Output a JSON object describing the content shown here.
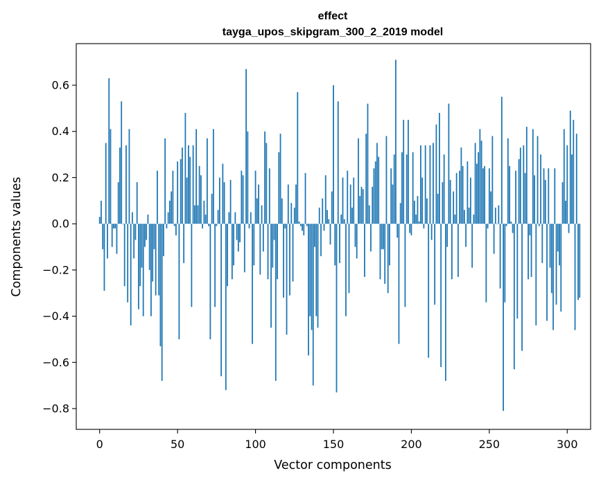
{
  "chart_data": {
    "type": "bar",
    "title_lines": [
      "effect",
      "tayga_upos_skipgram_300_2_2019 model"
    ],
    "xlabel": "Vector components",
    "ylabel": "Components values",
    "xlim": [
      -15,
      315
    ],
    "ylim": [
      -0.89,
      0.78
    ],
    "xticks": [
      0,
      50,
      100,
      150,
      200,
      250,
      300
    ],
    "yticks": [
      -0.8,
      -0.6,
      -0.4,
      -0.2,
      0.0,
      0.2,
      0.4,
      0.6
    ],
    "ytick_labels": [
      "−0.8",
      "−0.6",
      "−0.4",
      "−0.2",
      "0.0",
      "0.2",
      "0.4",
      "0.6"
    ],
    "xtick_labels": [
      "0",
      "50",
      "100",
      "150",
      "200",
      "250",
      "300"
    ],
    "bar_color": "#1f77b4",
    "bar_width": 0.8,
    "values": [
      0.03,
      0.1,
      -0.11,
      -0.29,
      0.35,
      -0.15,
      0.63,
      0.41,
      -0.1,
      -0.02,
      -0.02,
      -0.13,
      0.18,
      0.33,
      0.53,
      0.0,
      -0.27,
      0.34,
      -0.34,
      0.41,
      -0.44,
      0.05,
      -0.15,
      -0.07,
      0.18,
      -0.37,
      -0.27,
      -0.19,
      -0.4,
      -0.1,
      -0.07,
      0.04,
      -0.2,
      -0.4,
      -0.25,
      -0.11,
      -0.31,
      0.23,
      -0.31,
      -0.53,
      -0.68,
      -0.14,
      0.37,
      -0.02,
      0.05,
      0.1,
      0.14,
      0.23,
      -0.01,
      -0.05,
      0.27,
      -0.5,
      0.28,
      0.33,
      -0.17,
      0.48,
      0.2,
      0.34,
      0.29,
      -0.36,
      0.34,
      0.08,
      0.41,
      0.08,
      0.25,
      0.21,
      -0.02,
      0.1,
      0.04,
      0.37,
      -0.01,
      -0.5,
      0.13,
      0.41,
      -0.36,
      -0.01,
      0.06,
      0.2,
      -0.66,
      0.26,
      0.18,
      -0.72,
      -0.27,
      0.05,
      0.19,
      -0.24,
      -0.18,
      0.05,
      -0.07,
      -0.12,
      -0.08,
      0.23,
      0.21,
      -0.21,
      0.67,
      0.4,
      -0.02,
      0.05,
      -0.52,
      -0.18,
      0.23,
      0.11,
      0.17,
      -0.22,
      0.08,
      -0.12,
      0.4,
      0.35,
      -0.24,
      0.24,
      -0.45,
      -0.19,
      -0.07,
      -0.68,
      -0.24,
      0.31,
      0.39,
      0.11,
      -0.32,
      -0.02,
      -0.48,
      0.17,
      -0.31,
      0.09,
      -0.25,
      0.07,
      0.17,
      0.57,
      0.01,
      -0.01,
      -0.03,
      -0.05,
      0.22,
      -0.01,
      -0.57,
      -0.4,
      -0.46,
      -0.7,
      -0.1,
      -0.4,
      -0.45,
      0.07,
      -0.14,
      0.11,
      -0.03,
      0.21,
      0.06,
      0.02,
      -0.09,
      0.14,
      0.6,
      -0.18,
      -0.73,
      0.53,
      -0.17,
      0.04,
      0.2,
      0.02,
      -0.4,
      0.23,
      -0.3,
      0.17,
      0.07,
      0.2,
      -0.1,
      -0.15,
      0.37,
      0.12,
      0.16,
      0.15,
      -0.23,
      0.39,
      0.52,
      0.08,
      -0.12,
      0.16,
      0.24,
      0.27,
      0.35,
      0.29,
      -0.24,
      -0.11,
      -0.11,
      -0.26,
      0.38,
      -0.3,
      -0.18,
      0.24,
      0.17,
      0.3,
      0.71,
      -0.06,
      -0.52,
      0.09,
      0.31,
      0.45,
      -0.36,
      0.3,
      0.45,
      -0.04,
      -0.05,
      0.31,
      0.1,
      0.04,
      0.12,
      0.01,
      0.34,
      0.2,
      -0.02,
      0.34,
      0.11,
      -0.58,
      0.34,
      -0.07,
      0.35,
      -0.35,
      0.43,
      0.13,
      0.48,
      -0.62,
      0.18,
      0.3,
      -0.68,
      -0.1,
      0.52,
      0.19,
      -0.24,
      0.14,
      0.04,
      0.22,
      -0.23,
      0.23,
      0.33,
      0.25,
      0.06,
      -0.1,
      0.27,
      0.07,
      0.2,
      -0.19,
      0.04,
      0.35,
      0.26,
      0.31,
      0.41,
      0.36,
      0.24,
      0.25,
      -0.34,
      -0.02,
      0.24,
      0.14,
      0.38,
      -0.13,
      0.07,
      0.0,
      0.08,
      -0.28,
      0.55,
      -0.81,
      -0.34,
      -0.01,
      0.37,
      0.25,
      0.01,
      -0.04,
      -0.63,
      0.23,
      -0.41,
      0.28,
      0.33,
      -0.55,
      0.34,
      0.22,
      0.42,
      -0.24,
      -0.05,
      -0.23,
      0.41,
      0.21,
      -0.44,
      0.38,
      -0.01,
      0.3,
      -0.17,
      0.24,
      0.19,
      -0.42,
      0.24,
      -0.19,
      -0.3,
      -0.46,
      0.24,
      -0.35,
      -0.12,
      -0.18,
      -0.38,
      0.18,
      0.41,
      0.1,
      0.34,
      -0.04,
      0.49,
      0.3,
      0.45,
      -0.46,
      0.39,
      -0.33,
      -0.32
    ]
  }
}
